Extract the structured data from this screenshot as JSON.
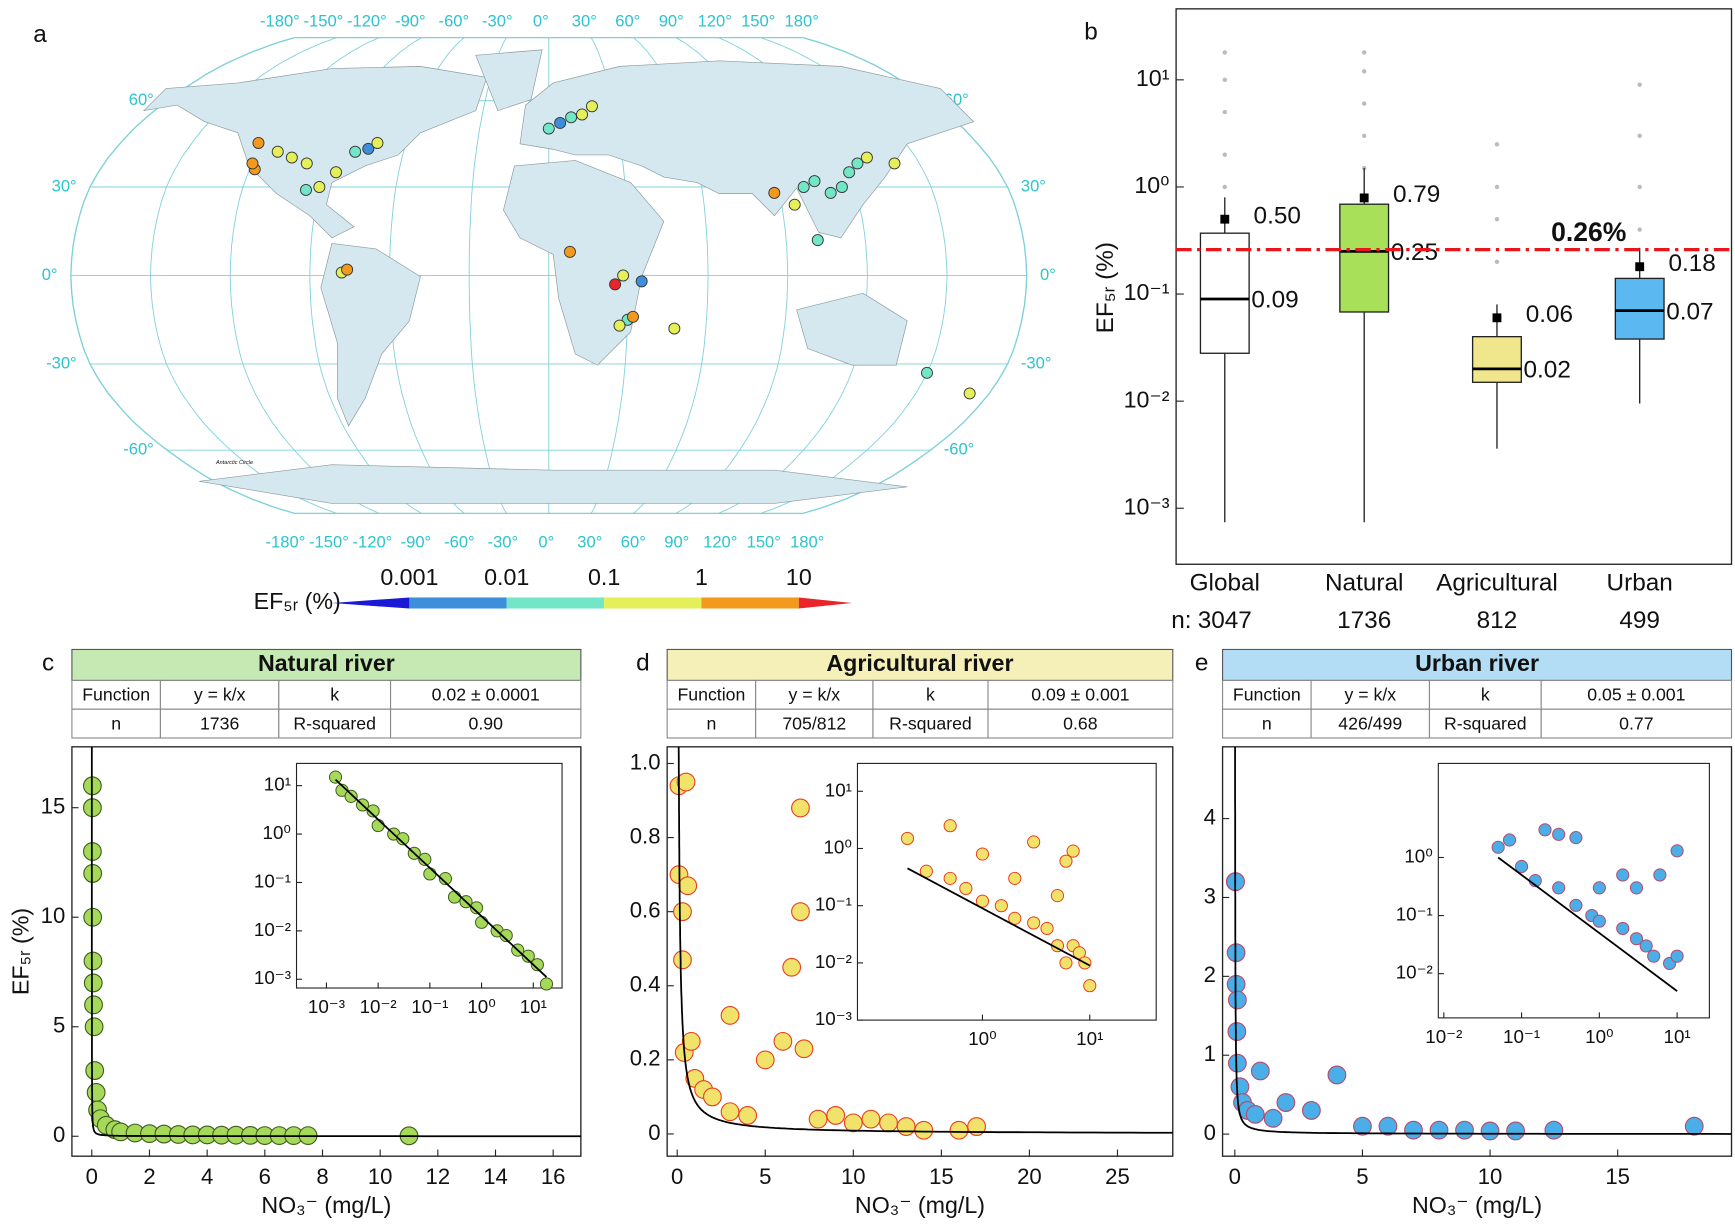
{
  "chart_data": [
    {
      "type": "map",
      "panel": "a",
      "note": "Antarctic Circle",
      "xticks": [
        {
          "value": -180,
          "label": "-180°"
        },
        {
          "value": -150,
          "label": "-150°"
        },
        {
          "value": -120,
          "label": "-120°"
        },
        {
          "value": -90,
          "label": "-90°"
        },
        {
          "value": -60,
          "label": "-60°"
        },
        {
          "value": -30,
          "label": "-30°"
        },
        {
          "value": 0,
          "label": "0°"
        },
        {
          "value": 30,
          "label": "30°"
        },
        {
          "value": 60,
          "label": "60°"
        },
        {
          "value": 90,
          "label": "90°"
        },
        {
          "value": 120,
          "label": "120°"
        },
        {
          "value": 150,
          "label": "150°"
        },
        {
          "value": 180,
          "label": "180°"
        }
      ],
      "yticks": [
        {
          "value": 60,
          "label": "60°"
        },
        {
          "value": 30,
          "label": "30°"
        },
        {
          "value": 0,
          "label": "0°"
        },
        {
          "value": -30,
          "label": "-30°"
        },
        {
          "value": -60,
          "label": "-60°"
        }
      ],
      "lon": [
        -122,
        -118,
        -112,
        -105,
        -98,
        -90,
        -85,
        -80,
        -75,
        -72,
        -120,
        -95,
        0,
        5,
        10,
        15,
        20,
        100,
        105,
        110,
        115,
        120,
        125,
        130,
        88,
        95,
        25,
        28,
        30,
        32,
        27,
        35,
        8,
        -78,
        -76,
        48,
        150,
        172,
        140,
        102
      ],
      "lat": [
        45,
        36,
        42,
        40,
        38,
        30,
        35,
        42,
        43,
        45,
        38,
        29,
        50,
        52,
        54,
        55,
        58,
        30,
        32,
        28,
        30,
        35,
        38,
        40,
        28,
        24,
        -3,
        0,
        -15,
        -14,
        -17,
        -2,
        8,
        1,
        2,
        -18,
        -33,
        -40,
        38,
        12
      ],
      "values": [
        1.5,
        3,
        0.5,
        0.3,
        0.8,
        0.2,
        0.4,
        0.05,
        0.003,
        0.5,
        2,
        0.06,
        0.03,
        0.002,
        0.05,
        0.3,
        0.4,
        0.04,
        0.06,
        0.02,
        0.03,
        0.05,
        0.04,
        0.3,
        2,
        0.5,
        15,
        0.5,
        0.04,
        3,
        0.2,
        0.005,
        2,
        0.5,
        2,
        0.5,
        0.05,
        0.4,
        0.5,
        0.04
      ],
      "colorbar": {
        "label": "EF₅ᵣ (%)",
        "ticks": [
          0.001,
          0.01,
          0.1,
          1,
          10
        ],
        "colors": [
          "#1a1ad6",
          "#3d8fdc",
          "#72e6c6",
          "#e4ef5a",
          "#f39a1e",
          "#e8262a"
        ]
      }
    },
    {
      "type": "box",
      "panel": "b",
      "ylabel": "EF₅ᵣ (%)",
      "log": true,
      "ylim": [
        0.0003,
        46
      ],
      "yticks": [
        {
          "value": 0.001,
          "label": "10⁻³"
        },
        {
          "value": 0.01,
          "label": "10⁻²"
        },
        {
          "value": 0.1,
          "label": "10⁻¹"
        },
        {
          "value": 1,
          "label": "10⁰"
        },
        {
          "value": 10,
          "label": "10¹"
        }
      ],
      "categories": [
        "Global",
        "Natural",
        "Agricultural",
        "Urban"
      ],
      "n_label": "n:",
      "n": [
        3047,
        1736,
        812,
        499
      ],
      "colors": [
        "#ffffff",
        "#a8e05a",
        "#f0e68c",
        "#5bb8f0"
      ],
      "whisker_low": [
        0.00074,
        0.00074,
        0.0036,
        0.0095
      ],
      "q1": [
        0.028,
        0.068,
        0.015,
        0.038
      ],
      "median": [
        0.09,
        0.25,
        0.02,
        0.07
      ],
      "q3": [
        0.37,
        0.69,
        0.04,
        0.14
      ],
      "whisker_high": [
        0.8,
        1.5,
        0.08,
        0.27
      ],
      "mean": [
        0.5,
        0.79,
        0.06,
        0.18
      ],
      "mean_labels": [
        "0.50",
        "0.79",
        "0.06",
        "0.18"
      ],
      "outliers": [
        [
          1,
          2,
          5,
          10,
          18
        ],
        [
          1.5,
          3,
          6,
          12,
          18
        ],
        [
          0.2,
          0.5,
          1,
          2.5
        ],
        [
          0.4,
          1,
          3,
          9
        ]
      ],
      "reference": {
        "value": 0.26,
        "label": "0.26%",
        "color": "#e8161b"
      }
    },
    {
      "type": "scatter",
      "panel": "c",
      "title": "Natural river",
      "header_color": "#c6e9b4",
      "table": [
        [
          "Function",
          "y = k/x",
          "k",
          "0.02 ± 0.0001"
        ],
        [
          "n",
          "1736",
          "R-squared",
          "0.90"
        ]
      ],
      "k": 0.02,
      "xlabel": "NO₃⁻ (mg/L)",
      "ylabel": "EF₅ᵣ (%)",
      "color": "#a6d95a",
      "edge": "#3d5c1e",
      "x": [
        0.02,
        0.02,
        0.02,
        0.03,
        0.03,
        0.04,
        0.05,
        0.06,
        0.08,
        0.1,
        0.15,
        0.2,
        0.3,
        0.5,
        0.8,
        1,
        1.5,
        2,
        2.5,
        3,
        3.5,
        4,
        4.5,
        5,
        5.5,
        6,
        6.5,
        7,
        7.5,
        11
      ],
      "y": [
        16,
        15,
        13,
        12,
        10,
        8,
        7,
        6,
        5,
        3,
        2,
        1.2,
        0.8,
        0.5,
        0.3,
        0.2,
        0.15,
        0.12,
        0.1,
        0.08,
        0.06,
        0.06,
        0.05,
        0.05,
        0.04,
        0.03,
        0.03,
        0.03,
        0.03,
        0.02
      ],
      "xlim": [
        -0.69,
        16.96
      ],
      "ylim": [
        -0.91,
        17.78
      ],
      "xticks": [
        0,
        2,
        4,
        6,
        8,
        10,
        12,
        14,
        16
      ],
      "yticks": [
        0,
        5,
        10,
        15
      ],
      "inset": {
        "log": true,
        "x": [
          0.0015,
          0.002,
          0.003,
          0.005,
          0.008,
          0.01,
          0.02,
          0.03,
          0.05,
          0.08,
          0.1,
          0.2,
          0.3,
          0.5,
          0.8,
          1,
          2,
          3,
          5,
          8,
          12,
          18
        ],
        "y": [
          15,
          8,
          6,
          4,
          3,
          1.5,
          1,
          0.8,
          0.4,
          0.3,
          0.15,
          0.12,
          0.05,
          0.04,
          0.03,
          0.015,
          0.01,
          0.008,
          0.004,
          0.003,
          0.002,
          0.0008
        ],
        "xlim": [
          0.000264,
          36
        ],
        "ylim": [
          0.00066,
          28.8
        ],
        "xticks": [
          {
            "value": 0.001,
            "label": "10⁻³"
          },
          {
            "value": 0.01,
            "label": "10⁻²"
          },
          {
            "value": 0.1,
            "label": "10⁻¹"
          },
          {
            "value": 1,
            "label": "10⁰"
          },
          {
            "value": 10,
            "label": "10¹"
          }
        ],
        "yticks": [
          {
            "value": 0.001,
            "label": "10⁻³"
          },
          {
            "value": 0.01,
            "label": "10⁻²"
          },
          {
            "value": 0.1,
            "label": "10⁻¹"
          },
          {
            "value": 1,
            "label": "10⁰"
          },
          {
            "value": 10,
            "label": "10¹"
          }
        ]
      }
    },
    {
      "type": "scatter",
      "panel": "d",
      "title": "Agricultural river",
      "header_color": "#f5f0b8",
      "table": [
        [
          "Function",
          "y = k/x",
          "k",
          "0.09 ± 0.001"
        ],
        [
          "n",
          "705/812",
          "R-squared",
          "0.68"
        ]
      ],
      "k": 0.09,
      "xlabel": "NO₃⁻ (mg/L)",
      "color": "#f0e26a",
      "edge": "#e8401e",
      "x": [
        0.1,
        0.1,
        0.3,
        0.3,
        0.4,
        0.5,
        0.6,
        0.8,
        1,
        1.5,
        2,
        3,
        3,
        4,
        5,
        6,
        6.5,
        7,
        7,
        7.2,
        8,
        9,
        10,
        11,
        12,
        13,
        14,
        16,
        17
      ],
      "y": [
        0.94,
        0.7,
        0.6,
        0.47,
        0.22,
        0.95,
        0.67,
        0.25,
        0.15,
        0.12,
        0.1,
        0.32,
        0.06,
        0.05,
        0.2,
        0.25,
        0.45,
        0.88,
        0.6,
        0.23,
        0.04,
        0.05,
        0.03,
        0.04,
        0.03,
        0.02,
        0.01,
        0.01,
        0.02
      ],
      "xlim": [
        -0.57,
        28.14
      ],
      "ylim": [
        -0.06,
        1.045
      ],
      "xticks": [
        0,
        5,
        10,
        15,
        20,
        25
      ],
      "yticks": [
        0,
        0.2,
        0.4,
        0.6,
        0.8,
        {
          "value": 1,
          "label": "1.0"
        }
      ],
      "inset": {
        "log": true,
        "x": [
          0.2,
          0.3,
          0.5,
          0.5,
          0.7,
          1,
          1,
          1.5,
          2,
          2,
          3,
          3,
          4,
          5,
          5,
          6,
          6,
          7,
          7,
          8,
          9,
          10
        ],
        "y": [
          1.5,
          0.4,
          2.5,
          0.3,
          0.2,
          0.8,
          0.12,
          0.1,
          0.06,
          0.3,
          1.3,
          0.05,
          0.04,
          0.15,
          0.02,
          0.01,
          0.6,
          0.9,
          0.02,
          0.015,
          0.01,
          0.004
        ],
        "xlim": [
          0.0684,
          41.6
        ],
        "ylim": [
          0.001,
          30.7
        ],
        "xticks": [
          {
            "value": 1,
            "label": "10⁰"
          },
          {
            "value": 10,
            "label": "10¹"
          }
        ],
        "yticks": [
          {
            "value": 0.001,
            "label": "10⁻³"
          },
          {
            "value": 0.01,
            "label": "10⁻²"
          },
          {
            "value": 0.1,
            "label": "10⁻¹"
          },
          {
            "value": 1,
            "label": "10⁰"
          },
          {
            "value": 10,
            "label": "10¹"
          }
        ]
      }
    },
    {
      "type": "scatter",
      "panel": "e",
      "title": "Urban river",
      "header_color": "#b3dcf5",
      "table": [
        [
          "Function",
          "y = k/x",
          "k",
          "0.05 ± 0.001"
        ],
        [
          "n",
          "426/499",
          "R-squared",
          "0.77"
        ]
      ],
      "k": 0.05,
      "xlabel": "NO₃⁻ (mg/L)",
      "color": "#4aaee8",
      "edge": "#b84a6a",
      "x": [
        0.02,
        0.03,
        0.05,
        0.05,
        0.08,
        0.1,
        0.1,
        0.2,
        0.3,
        0.5,
        0.8,
        1,
        1.5,
        2,
        3,
        4,
        5,
        6,
        7,
        8,
        9,
        10,
        11,
        12.5,
        18
      ],
      "y": [
        3.2,
        3.2,
        1.9,
        2.3,
        1.3,
        1.7,
        0.9,
        0.6,
        0.4,
        0.3,
        0.25,
        0.8,
        0.2,
        0.4,
        0.3,
        0.75,
        0.1,
        0.1,
        0.05,
        0.05,
        0.05,
        0.04,
        0.04,
        0.05,
        0.1
      ],
      "xlim": [
        -0.48,
        19.46
      ],
      "ylim": [
        -0.28,
        4.91
      ],
      "xticks": [
        0,
        5,
        10,
        15
      ],
      "yticks": [
        0,
        1,
        2,
        3,
        4
      ],
      "inset": {
        "log": true,
        "x": [
          0.05,
          0.07,
          0.1,
          0.15,
          0.2,
          0.3,
          0.3,
          0.5,
          0.5,
          0.8,
          1,
          1,
          2,
          2,
          3,
          3,
          4,
          5,
          6,
          8,
          10,
          10
        ],
        "y": [
          1.5,
          2,
          0.7,
          0.4,
          3,
          0.3,
          2.5,
          0.15,
          2.2,
          0.1,
          0.3,
          0.08,
          0.06,
          0.5,
          0.04,
          0.3,
          0.03,
          0.02,
          0.5,
          0.015,
          1.3,
          0.02
        ],
        "xlim": [
          0.0085,
          26
        ],
        "ylim": [
          0.00173,
          41.7
        ],
        "xticks": [
          {
            "value": 0.01,
            "label": "10⁻²"
          },
          {
            "value": 0.1,
            "label": "10⁻¹"
          },
          {
            "value": 1,
            "label": "10⁰"
          },
          {
            "value": 10,
            "label": "10¹"
          }
        ],
        "yticks": [
          {
            "value": 0.01,
            "label": "10⁻²"
          },
          {
            "value": 0.1,
            "label": "10⁻¹"
          },
          {
            "value": 1,
            "label": "10⁰"
          }
        ]
      }
    }
  ]
}
